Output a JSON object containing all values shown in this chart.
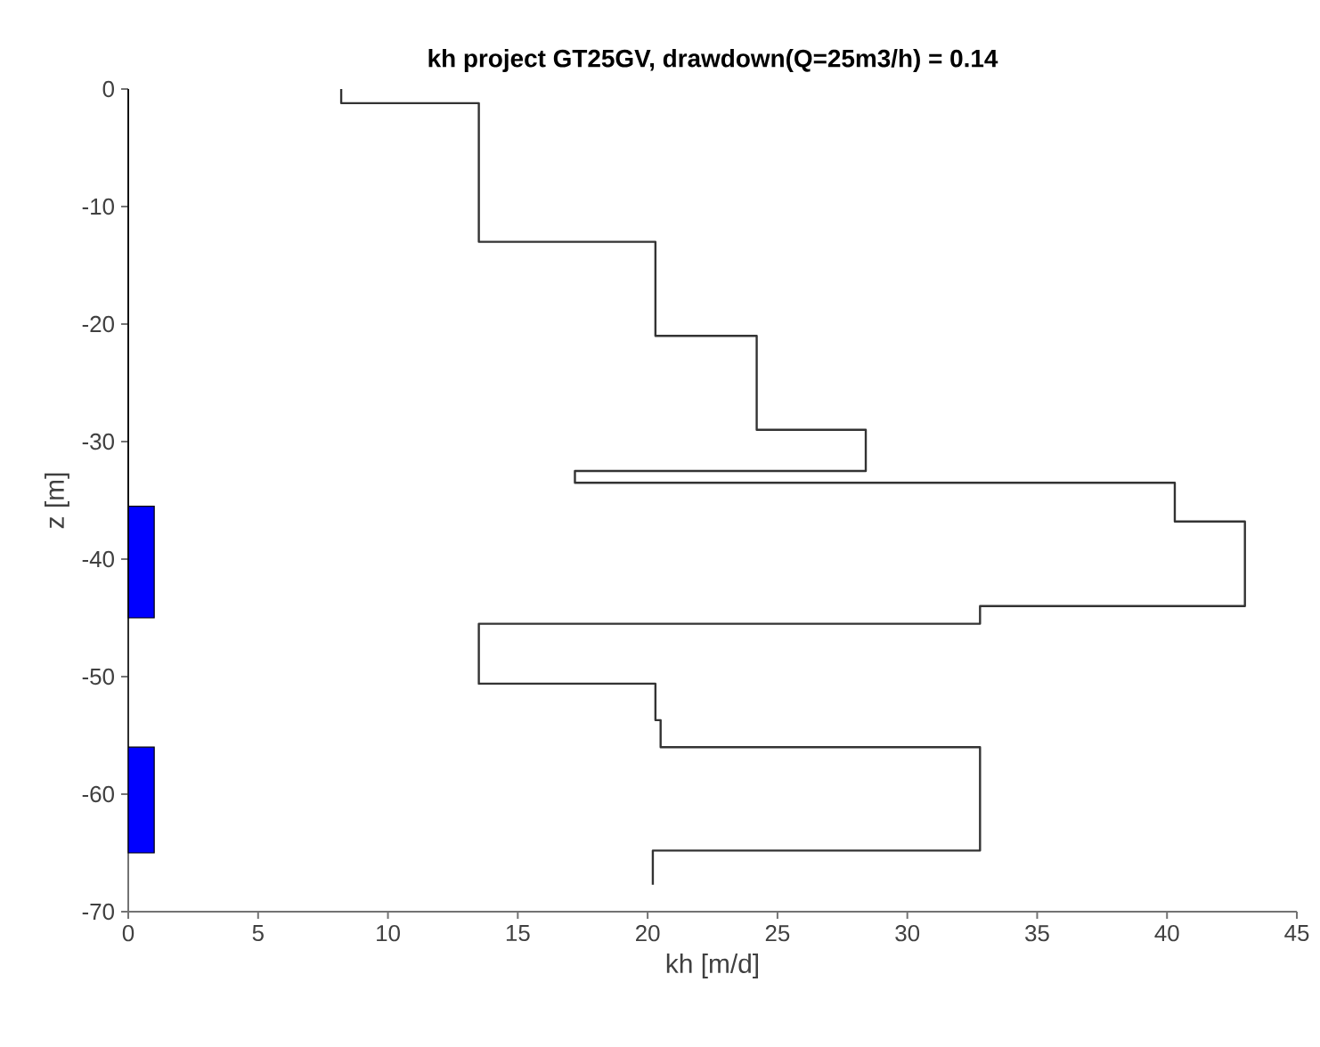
{
  "chart_data": {
    "type": "line",
    "title": "kh project GT25GV, drawdown(Q=25m3/h) = 0.14",
    "xlabel": "kh [m/d]",
    "ylabel": "z [m]",
    "xlim": [
      0,
      45
    ],
    "ylim": [
      -70,
      0
    ],
    "xticks": [
      0,
      5,
      10,
      15,
      20,
      25,
      30,
      35,
      40,
      45
    ],
    "yticks": [
      -70,
      -60,
      -50,
      -40,
      -30,
      -20,
      -10,
      0
    ],
    "grid": false,
    "series": [
      {
        "color": "#333333",
        "x": [
          8.2,
          8.2,
          13.5,
          13.5,
          20.3,
          20.3,
          24.2,
          24.2,
          28.4,
          28.4,
          17.2,
          17.2,
          40.3,
          40.3,
          43,
          43,
          32.8,
          32.8,
          13.5,
          13.5,
          20.3,
          20.3,
          20.5,
          20.5,
          32.8,
          32.8,
          20.2,
          20.2
        ],
        "values": [
          0,
          -1.2,
          -1.2,
          -13,
          -13,
          -21,
          -21,
          -29,
          -29,
          -32.5,
          -32.5,
          -33.5,
          -33.5,
          -36.8,
          -36.8,
          -44,
          -44,
          -45.5,
          -45.5,
          -50.6,
          -50.6,
          -53.7,
          -53.7,
          -56,
          -56,
          -64.8,
          -64.8,
          -67.7
        ]
      },
      {
        "type": "area",
        "color": "#0000ff",
        "x": [
          0,
          1,
          1,
          0,
          0
        ],
        "values": [
          -35.5,
          -35.5,
          -45,
          -45,
          -35.5
        ]
      },
      {
        "type": "area",
        "color": "#0000ff",
        "x": [
          0,
          1,
          1,
          0,
          0
        ],
        "values": [
          -56,
          -56,
          -65,
          -65,
          -56
        ]
      }
    ]
  }
}
